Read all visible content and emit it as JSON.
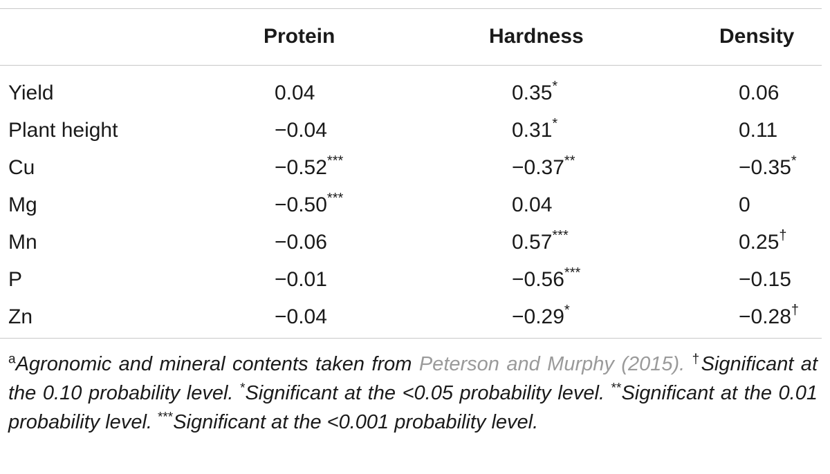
{
  "table": {
    "columns": [
      "Protein",
      "Hardness",
      "Density"
    ],
    "rows": [
      {
        "label": "Yield",
        "protein": "0.04",
        "protein_sig": "",
        "hardness": "0.35",
        "hardness_sig": "*",
        "density": "0.06",
        "density_sig": ""
      },
      {
        "label": "Plant height",
        "protein": "−0.04",
        "protein_sig": "",
        "hardness": "0.31",
        "hardness_sig": "*",
        "density": "0.11",
        "density_sig": ""
      },
      {
        "label": "Cu",
        "protein": "−0.52",
        "protein_sig": "***",
        "hardness": "−0.37",
        "hardness_sig": "**",
        "density": "−0.35",
        "density_sig": "*"
      },
      {
        "label": "Mg",
        "protein": "−0.50",
        "protein_sig": "***",
        "hardness": "0.04",
        "hardness_sig": "",
        "density": "0",
        "density_sig": ""
      },
      {
        "label": "Mn",
        "protein": "−0.06",
        "protein_sig": "",
        "hardness": "0.57",
        "hardness_sig": "***",
        "density": "0.25",
        "density_sig": "†"
      },
      {
        "label": "P",
        "protein": "−0.01",
        "protein_sig": "",
        "hardness": "−0.56",
        "hardness_sig": "***",
        "density": "−0.15",
        "density_sig": ""
      },
      {
        "label": "Zn",
        "protein": "−0.04",
        "protein_sig": "",
        "hardness": "−0.29",
        "hardness_sig": "*",
        "density": "−0.28",
        "density_sig": "†"
      }
    ]
  },
  "notes": {
    "a_mark": "a",
    "a_text": "Agronomic and mineral contents taken from",
    "a_ref": "Peterson and Murphy (2015).",
    "dagger_mark": "†",
    "dagger_text": "Significant at the 0.10 probability level.",
    "star1_mark": "*",
    "star1_text": "Significant at the <0.05 probability level.",
    "star2_mark": "**",
    "star2_text": "Significant at the 0.01 probability level.",
    "star3_mark": "***",
    "star3_text": "Significant at the <0.001 probability level."
  }
}
